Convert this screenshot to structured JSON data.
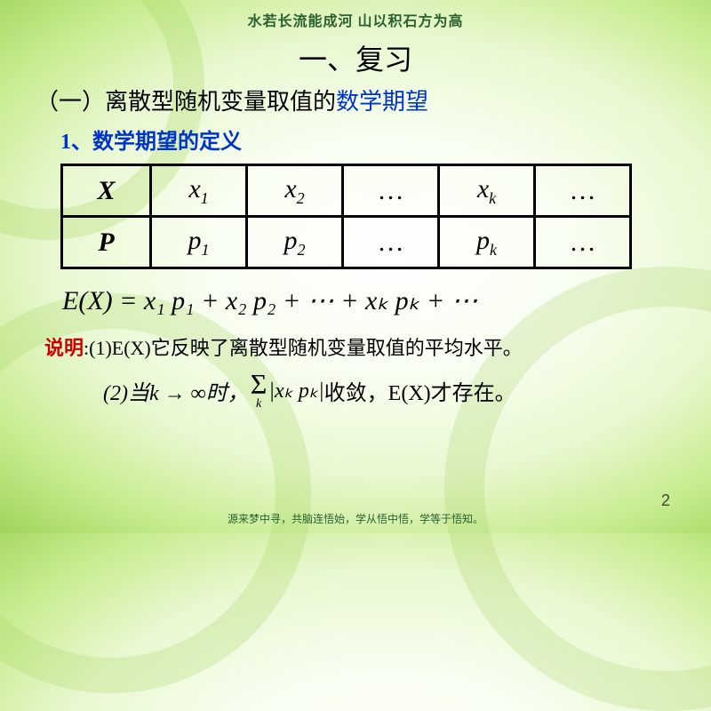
{
  "topBanner": "水若长流能成河  山以积石方为高",
  "bottomBanner": "源来梦中寻，共脑连悟始，学从悟中悟，学等于悟知。",
  "title": "一、复习",
  "subtitle_pre": "（一）离散型随机变量取值的",
  "subtitle_em": "数学期望",
  "section1": "1、数学期望的定义",
  "table": {
    "row1": [
      "X",
      "x",
      "x",
      "…",
      "x",
      "…"
    ],
    "row1_sub": [
      "",
      "1",
      "2",
      "",
      "k",
      ""
    ],
    "row2": [
      "P",
      "p",
      "p",
      "…",
      "p",
      "…"
    ],
    "row2_sub": [
      "",
      "1",
      "2",
      "",
      "k",
      ""
    ]
  },
  "formula": {
    "lhs": "E(X) = ",
    "terms": [
      "x₁ p₁",
      " + ",
      "x₂ p₂",
      " + ⋯ + ",
      "xₖ pₖ",
      " + ⋯"
    ]
  },
  "note1_label": "说明",
  "note1_text": ":(1)E(X)它反映了离散型随机变量取值的平均水平。",
  "note2_pre": "(2)当k → ∞时，",
  "note2_sigma": "Σ",
  "note2_sigma_lim": "k",
  "note2_mid": "|xₖ pₖ|",
  "note2_post": " 收敛，E(X)才存在。",
  "pageNum": "2"
}
